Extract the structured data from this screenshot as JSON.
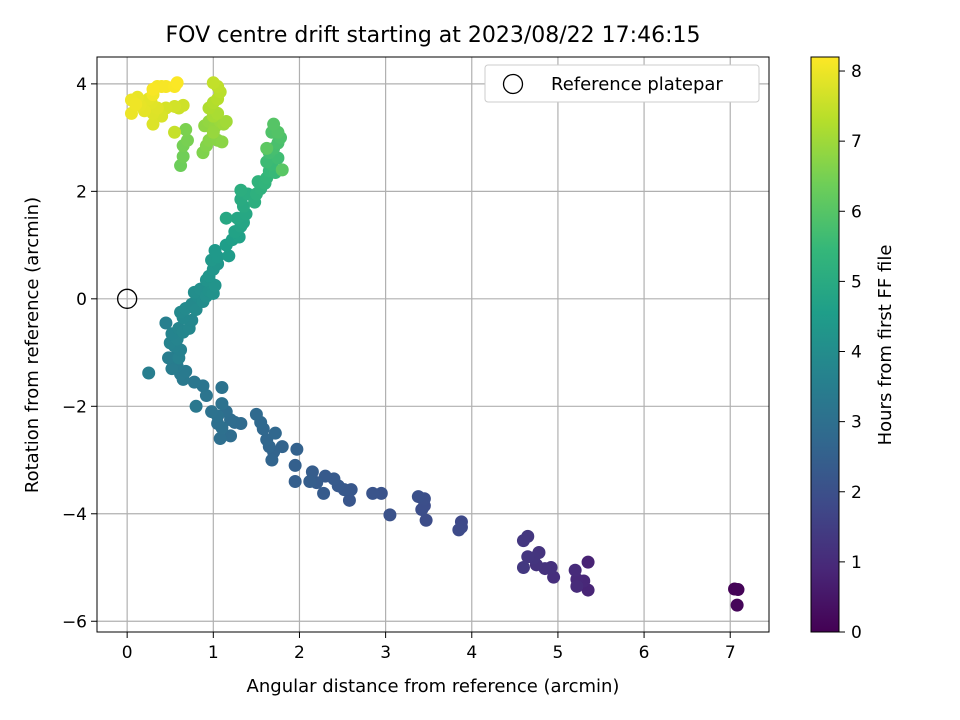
{
  "chart_data": {
    "type": "scatter",
    "title": "FOV centre drift starting at 2023/08/22 17:46:15",
    "xlabel": "Angular distance from reference (arcmin)",
    "ylabel": "Rotation from reference (arcmin)",
    "xlim": [
      -0.35,
      7.45
    ],
    "ylim": [
      -6.2,
      4.5
    ],
    "xticks": [
      0,
      1,
      2,
      3,
      4,
      5,
      6,
      7
    ],
    "yticks": [
      -6,
      -4,
      -2,
      0,
      2,
      4
    ],
    "grid": true,
    "legend": {
      "placement": "upper-right",
      "label": "Reference platepar"
    },
    "reference_point": {
      "x": 0,
      "y": 0
    },
    "colorbar": {
      "label": "Hours from first FF file",
      "colormap": "viridis",
      "range": [
        0,
        8.2
      ],
      "ticks": [
        0,
        1,
        2,
        3,
        4,
        5,
        6,
        7,
        8
      ]
    },
    "series": [
      {
        "points": [
          [
            7.05,
            -5.4,
            0.05
          ],
          [
            7.09,
            -5.41,
            0.08
          ],
          [
            7.08,
            -5.7,
            0.12
          ],
          [
            5.35,
            -4.9,
            0.8
          ],
          [
            5.35,
            -5.42,
            0.85
          ],
          [
            5.3,
            -5.25,
            0.9
          ],
          [
            5.22,
            -5.22,
            0.95
          ],
          [
            5.2,
            -5.05,
            1.0
          ],
          [
            5.22,
            -5.35,
            1.02
          ],
          [
            4.95,
            -5.18,
            1.1
          ],
          [
            4.92,
            -5.0,
            1.15
          ],
          [
            4.85,
            -5.02,
            1.18
          ],
          [
            4.75,
            -4.95,
            1.2
          ],
          [
            4.78,
            -4.72,
            1.22
          ],
          [
            4.72,
            -4.82,
            1.25
          ],
          [
            4.65,
            -4.8,
            1.28
          ],
          [
            4.65,
            -4.42,
            1.3
          ],
          [
            4.6,
            -4.5,
            1.32
          ],
          [
            4.6,
            -5.0,
            1.35
          ],
          [
            3.88,
            -4.15,
            1.8
          ],
          [
            3.88,
            -4.25,
            1.82
          ],
          [
            3.85,
            -4.3,
            1.85
          ],
          [
            3.47,
            -4.12,
            1.9
          ],
          [
            3.45,
            -3.85,
            1.92
          ],
          [
            3.42,
            -3.92,
            1.95
          ],
          [
            3.45,
            -3.72,
            1.98
          ],
          [
            3.38,
            -3.68,
            2.0
          ],
          [
            3.05,
            -4.02,
            2.05
          ],
          [
            2.95,
            -3.62,
            2.1
          ],
          [
            2.85,
            -3.62,
            2.12
          ],
          [
            2.58,
            -3.75,
            2.2
          ],
          [
            2.6,
            -3.55,
            2.22
          ],
          [
            2.52,
            -3.55,
            2.25
          ],
          [
            2.45,
            -3.48,
            2.28
          ],
          [
            2.4,
            -3.35,
            2.3
          ],
          [
            2.3,
            -3.3,
            2.32
          ],
          [
            2.28,
            -3.62,
            2.35
          ],
          [
            2.2,
            -3.42,
            2.38
          ],
          [
            2.15,
            -3.22,
            2.4
          ],
          [
            2.12,
            -3.4,
            2.42
          ],
          [
            1.95,
            -3.4,
            2.45
          ],
          [
            1.95,
            -3.1,
            2.5
          ],
          [
            1.97,
            -2.8,
            2.55
          ],
          [
            1.8,
            -2.75,
            2.6
          ],
          [
            1.7,
            -2.85,
            2.62
          ],
          [
            1.68,
            -3.0,
            2.65
          ],
          [
            1.65,
            -2.75,
            2.68
          ],
          [
            1.62,
            -2.62,
            2.7
          ],
          [
            1.72,
            -2.5,
            2.72
          ],
          [
            1.58,
            -2.42,
            2.75
          ],
          [
            1.55,
            -2.3,
            2.78
          ],
          [
            1.5,
            -2.15,
            2.8
          ],
          [
            1.32,
            -2.32,
            2.85
          ],
          [
            1.25,
            -2.3,
            2.88
          ],
          [
            1.2,
            -2.55,
            2.9
          ],
          [
            1.2,
            -2.25,
            2.92
          ],
          [
            1.15,
            -2.1,
            2.95
          ],
          [
            1.08,
            -2.6,
            2.98
          ],
          [
            1.1,
            -2.4,
            3.0
          ],
          [
            1.05,
            -2.32,
            3.02
          ],
          [
            1.05,
            -2.18,
            3.05
          ],
          [
            1.1,
            -1.95,
            3.08
          ],
          [
            0.98,
            -2.1,
            3.1
          ],
          [
            1.1,
            -1.65,
            3.12
          ],
          [
            0.92,
            -1.8,
            3.18
          ],
          [
            0.88,
            -1.62,
            3.2
          ],
          [
            0.78,
            -1.55,
            3.25
          ],
          [
            0.8,
            -2.0,
            3.28
          ],
          [
            0.65,
            -1.5,
            3.32
          ],
          [
            0.62,
            -1.4,
            3.35
          ],
          [
            0.68,
            -1.35,
            3.38
          ],
          [
            0.58,
            -1.25,
            3.4
          ],
          [
            0.52,
            -1.3,
            3.42
          ],
          [
            0.55,
            -1.1,
            3.45
          ],
          [
            0.48,
            -1.1,
            3.48
          ],
          [
            0.25,
            -1.38,
            3.5
          ],
          [
            0.45,
            -0.45,
            3.55
          ],
          [
            0.6,
            -1.1,
            3.6
          ],
          [
            0.62,
            -0.95,
            3.62
          ],
          [
            0.55,
            -0.88,
            3.65
          ],
          [
            0.5,
            -0.82,
            3.68
          ],
          [
            0.58,
            -0.75,
            3.7
          ],
          [
            0.52,
            -0.65,
            3.72
          ],
          [
            0.6,
            -0.55,
            3.75
          ],
          [
            0.65,
            -0.62,
            3.78
          ],
          [
            0.72,
            -0.55,
            3.8
          ],
          [
            0.75,
            -0.4,
            3.82
          ],
          [
            0.65,
            -0.35,
            3.85
          ],
          [
            0.62,
            -0.25,
            3.88
          ],
          [
            0.68,
            -0.18,
            3.9
          ],
          [
            0.75,
            -0.1,
            3.92
          ],
          [
            0.8,
            -0.2,
            3.95
          ],
          [
            0.82,
            0.05,
            3.98
          ],
          [
            0.88,
            -0.05,
            4.0
          ],
          [
            0.78,
            0.12,
            4.05
          ],
          [
            0.85,
            0.18,
            4.08
          ],
          [
            0.92,
            0.05,
            4.1
          ],
          [
            0.95,
            0.15,
            4.12
          ],
          [
            1.0,
            0.1,
            4.15
          ],
          [
            0.98,
            0.28,
            4.18
          ],
          [
            0.92,
            0.35,
            4.2
          ],
          [
            1.02,
            0.25,
            4.22
          ],
          [
            0.95,
            0.42,
            4.25
          ],
          [
            1.0,
            0.55,
            4.28
          ],
          [
            1.05,
            0.65,
            4.3
          ],
          [
            0.98,
            0.72,
            4.35
          ],
          [
            1.05,
            0.78,
            4.38
          ],
          [
            1.02,
            0.9,
            4.4
          ],
          [
            1.18,
            0.8,
            4.5
          ],
          [
            1.15,
            1.0,
            4.55
          ],
          [
            1.22,
            1.1,
            4.6
          ],
          [
            1.3,
            1.15,
            4.65
          ],
          [
            1.25,
            1.25,
            4.7
          ],
          [
            1.32,
            1.35,
            4.75
          ],
          [
            1.35,
            1.42,
            4.8
          ],
          [
            1.28,
            1.5,
            4.85
          ],
          [
            1.15,
            1.5,
            4.88
          ],
          [
            1.38,
            1.58,
            4.9
          ],
          [
            1.35,
            1.72,
            4.95
          ],
          [
            1.32,
            1.85,
            5.0
          ],
          [
            1.4,
            1.95,
            5.05
          ],
          [
            1.32,
            2.02,
            5.1
          ],
          [
            1.48,
            1.8,
            5.15
          ],
          [
            1.5,
            1.95,
            5.2
          ],
          [
            1.55,
            2.05,
            5.25
          ],
          [
            1.52,
            2.18,
            5.3
          ],
          [
            1.6,
            2.15,
            5.35
          ],
          [
            1.62,
            2.25,
            5.4
          ],
          [
            1.65,
            2.38,
            5.45
          ],
          [
            1.72,
            2.35,
            5.5
          ],
          [
            1.68,
            2.5,
            5.55
          ],
          [
            1.62,
            2.55,
            5.6
          ],
          [
            1.75,
            2.62,
            5.65
          ],
          [
            1.65,
            2.72,
            5.7
          ],
          [
            1.7,
            2.8,
            5.75
          ],
          [
            1.75,
            2.9,
            5.8
          ],
          [
            1.78,
            3.0,
            5.85
          ],
          [
            1.68,
            3.1,
            5.9
          ],
          [
            1.75,
            3.1,
            5.95
          ],
          [
            1.7,
            3.25,
            6.0
          ],
          [
            1.8,
            2.4,
            6.05
          ],
          [
            1.62,
            2.8,
            6.1
          ],
          [
            0.62,
            2.48,
            6.35
          ],
          [
            0.65,
            2.65,
            6.4
          ],
          [
            0.65,
            2.85,
            6.45
          ],
          [
            0.7,
            2.95,
            6.5
          ],
          [
            0.68,
            3.15,
            6.55
          ],
          [
            0.88,
            2.72,
            6.6
          ],
          [
            0.92,
            2.85,
            6.65
          ],
          [
            0.95,
            2.95,
            6.7
          ],
          [
            1.05,
            2.95,
            6.72
          ],
          [
            1.1,
            2.92,
            6.75
          ],
          [
            0.9,
            3.22,
            6.8
          ],
          [
            0.95,
            3.3,
            6.85
          ],
          [
            1.02,
            3.2,
            6.88
          ],
          [
            1.0,
            3.1,
            6.9
          ],
          [
            1.08,
            3.3,
            6.95
          ],
          [
            1.12,
            3.25,
            7.0
          ],
          [
            1.15,
            3.3,
            7.05
          ],
          [
            1.0,
            3.4,
            7.1
          ],
          [
            1.05,
            3.45,
            7.15
          ],
          [
            0.95,
            3.55,
            7.2
          ],
          [
            1.0,
            3.65,
            7.25
          ],
          [
            1.05,
            3.72,
            7.3
          ],
          [
            1.08,
            3.85,
            7.35
          ],
          [
            1.05,
            3.95,
            7.4
          ],
          [
            1.0,
            4.02,
            7.45
          ],
          [
            0.55,
            3.1,
            7.5
          ],
          [
            0.6,
            3.55,
            7.55
          ],
          [
            0.65,
            3.6,
            7.6
          ],
          [
            0.55,
            3.58,
            7.65
          ],
          [
            0.45,
            3.55,
            7.7
          ],
          [
            0.4,
            3.4,
            7.75
          ],
          [
            0.3,
            3.25,
            7.78
          ],
          [
            0.3,
            3.45,
            7.8
          ],
          [
            0.35,
            3.55,
            7.82
          ],
          [
            0.28,
            3.65,
            7.85
          ],
          [
            0.25,
            3.72,
            7.88
          ],
          [
            0.2,
            3.5,
            7.9
          ],
          [
            0.15,
            3.6,
            7.92
          ],
          [
            0.12,
            3.75,
            7.95
          ],
          [
            0.05,
            3.45,
            7.98
          ],
          [
            0.05,
            3.7,
            8.0
          ],
          [
            0.1,
            3.62,
            8.02
          ],
          [
            0.3,
            3.8,
            8.05
          ],
          [
            0.35,
            3.95,
            8.08
          ],
          [
            0.4,
            3.95,
            8.1
          ],
          [
            0.45,
            3.95,
            8.12
          ],
          [
            0.3,
            3.9,
            8.14
          ],
          [
            0.55,
            3.95,
            8.15
          ],
          [
            0.58,
            4.02,
            8.17
          ]
        ]
      }
    ]
  }
}
